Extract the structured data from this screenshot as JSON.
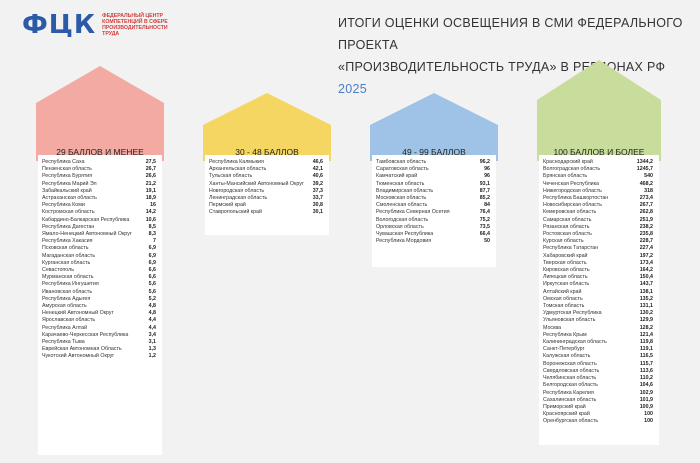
{
  "header": {
    "logo_mark": "ФЦК",
    "logo_text": "ФЕДЕРАЛЬНЫЙ ЦЕНТР КОМПЕТЕНЦИЙ В СФЕРЕ ПРОИЗВОДИТЕЛЬНОСТИ ТРУДА",
    "title_line1": "ИТОГИ ОЦЕНКИ ОСВЕЩЕНИЯ В СМИ ФЕДЕРАЛЬНОГО ПРОЕКТА",
    "title_line2": "«ПРОИЗВОДИТЕЛЬНОСТЬ ТРУДА» В РЕГИОНАХ РФ",
    "year": "2025"
  },
  "colors": {
    "pink": "#f2aaa3",
    "yellow": "#f5d663",
    "blue": "#9fc3e6",
    "green": "#c8dc9b"
  },
  "groups": [
    {
      "label": "29 БАЛЛОВ И МЕНЕЕ",
      "rows": [
        [
          "Республика Саха",
          "27,5"
        ],
        [
          "Пензенская область",
          "26,7"
        ],
        [
          "Республика Бурятия",
          "26,6"
        ],
        [
          "Республика Марий Эл",
          "21,2"
        ],
        [
          "Забайкальский край",
          "19,1"
        ],
        [
          "Астраханская область",
          "18,9"
        ],
        [
          "Республика Коми",
          "16"
        ],
        [
          "Костромская область",
          "14,2"
        ],
        [
          "Кабардино-Балкарская Республика",
          "10,6"
        ],
        [
          "Республика Дагестан",
          "8,5"
        ],
        [
          "Ямало-Ненецкий Автономный Округ",
          "8,3"
        ],
        [
          "Республика Хакасия",
          "7"
        ],
        [
          "Псковская область",
          "6,9"
        ],
        [
          "Магаданская область",
          "6,9"
        ],
        [
          "Курганская область",
          "6,9"
        ],
        [
          "Севастополь",
          "6,6"
        ],
        [
          "Мурманская область",
          "6,6"
        ],
        [
          "Республика Ингушетия",
          "5,6"
        ],
        [
          "Ивановская область",
          "5,6"
        ],
        [
          "Республика Адыгея",
          "5,2"
        ],
        [
          "Амурская область",
          "4,8"
        ],
        [
          "Ненецкий Автономный Округ",
          "4,8"
        ],
        [
          "Ярославская область",
          "4,4"
        ],
        [
          "Республика Алтай",
          "4,4"
        ],
        [
          "Карачаево-Черкесская Республика",
          "3,4"
        ],
        [
          "Республика Тыва",
          "3,1"
        ],
        [
          "Еврейская Автономная Область",
          "1,3"
        ],
        [
          "Чукотский Автономный Округ",
          "1,2"
        ]
      ]
    },
    {
      "label": "30 - 48 БАЛЛОВ",
      "rows": [
        [
          "Республика Калмыкия",
          "46,6"
        ],
        [
          "Архангельская область",
          "42,1"
        ],
        [
          "Тульская область",
          "40,6"
        ],
        [
          "Ханты-Мансийский Автономный Округ",
          "39,2"
        ],
        [
          "Новгородская область",
          "37,3"
        ],
        [
          "Ленинградская область",
          "33,7"
        ],
        [
          "Пермский край",
          "30,8"
        ],
        [
          "Ставропольский край",
          "30,1"
        ]
      ]
    },
    {
      "label": "49 - 99 БАЛЛОВ",
      "rows": [
        [
          "Тамбовская область",
          "96,2"
        ],
        [
          "Саратовская область",
          "96"
        ],
        [
          "Камчатский край",
          "96"
        ],
        [
          "Тюменская область",
          "93,1"
        ],
        [
          "Владимирская область",
          "87,7"
        ],
        [
          "Московская область",
          "85,2"
        ],
        [
          "Смоленская область",
          "84"
        ],
        [
          "Республика Северная Осетия",
          "76,4"
        ],
        [
          "Вологодская область",
          "75,2"
        ],
        [
          "Орловская область",
          "73,5"
        ],
        [
          "Чувашская Республика",
          "66,4"
        ],
        [
          "Республика Мордовия",
          "50"
        ]
      ]
    },
    {
      "label": "100 БАЛЛОВ И БОЛЕЕ",
      "rows": [
        [
          "Краснодарский край",
          "1344,2"
        ],
        [
          "Волгоградская область",
          "1245,7"
        ],
        [
          "Брянская область",
          "540"
        ],
        [
          "Чеченская Республика",
          "468,2"
        ],
        [
          "Нижегородская область",
          "318"
        ],
        [
          "Республика Башкортостан",
          "273,4"
        ],
        [
          "Новосибирская область",
          "267,7"
        ],
        [
          "Кемеровская область",
          "262,8"
        ],
        [
          "Самарская область",
          "251,9"
        ],
        [
          "Рязанская область",
          "238,2"
        ],
        [
          "Ростовская область",
          "235,8"
        ],
        [
          "Курская область",
          "228,7"
        ],
        [
          "Республика Татарстан",
          "227,4"
        ],
        [
          "Хабаровский край",
          "197,2"
        ],
        [
          "Тверская область",
          "173,4"
        ],
        [
          "Кировская область",
          "164,2"
        ],
        [
          "Липецкая область",
          "150,4"
        ],
        [
          "Иркутская область",
          "143,7"
        ],
        [
          "Алтайский край",
          "138,1"
        ],
        [
          "Омская область",
          "135,2"
        ],
        [
          "Томская область",
          "131,1"
        ],
        [
          "Удмуртская Республика",
          "130,2"
        ],
        [
          "Ульяновская область",
          "129,9"
        ],
        [
          "Москва",
          "128,2"
        ],
        [
          "Республика Крым",
          "121,4"
        ],
        [
          "Калининградская область",
          "119,8"
        ],
        [
          "Санкт-Петербург",
          "119,1"
        ],
        [
          "Калужская область",
          "116,5"
        ],
        [
          "Воронежская область",
          "115,7"
        ],
        [
          "Свердловская область",
          "113,6"
        ],
        [
          "Челябинская область",
          "110,2"
        ],
        [
          "Белгородская область",
          "104,6"
        ],
        [
          "Республика Карелия",
          "102,9"
        ],
        [
          "Сахалинская область",
          "101,9"
        ],
        [
          "Приморский край",
          "100,9"
        ],
        [
          "Красноярский край",
          "100"
        ],
        [
          "Оренбургская область",
          "100"
        ]
      ]
    }
  ]
}
